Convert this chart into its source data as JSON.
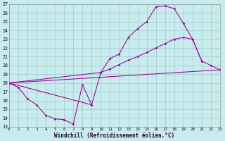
{
  "bg_color": "#c8eced",
  "grid_color": "#a0c8c8",
  "line_color": "#990099",
  "xlabel": "Windchill (Refroidissement éolien,°C)",
  "xmin": 0,
  "xmax": 23,
  "ymin": 13,
  "ymax": 27,
  "series": [
    {
      "x": [
        0,
        9,
        10,
        11,
        12,
        13,
        14,
        15,
        16,
        17,
        18,
        19,
        20,
        21
      ],
      "y": [
        18.0,
        15.5,
        19.2,
        20.8,
        21.3,
        23.2,
        24.2,
        25.0,
        26.7,
        26.8,
        26.5,
        24.8,
        23.0,
        20.5
      ],
      "marker": true
    },
    {
      "x": [
        0,
        10,
        11,
        12,
        13,
        14,
        15,
        16,
        17,
        18,
        19,
        20,
        21,
        22,
        23
      ],
      "y": [
        18.0,
        19.2,
        19.6,
        20.1,
        20.6,
        21.0,
        21.5,
        22.0,
        22.5,
        23.0,
        23.2,
        23.0,
        20.5,
        20.0,
        19.5
      ],
      "marker": true
    },
    {
      "x": [
        0,
        23
      ],
      "y": [
        18.0,
        19.5
      ],
      "marker": false
    },
    {
      "x": [
        0,
        1,
        2,
        3,
        4,
        5,
        6,
        7,
        8,
        9
      ],
      "y": [
        18.0,
        17.5,
        16.2,
        15.5,
        14.3,
        13.9,
        13.8,
        13.3,
        17.8,
        15.5
      ],
      "marker": true
    }
  ]
}
